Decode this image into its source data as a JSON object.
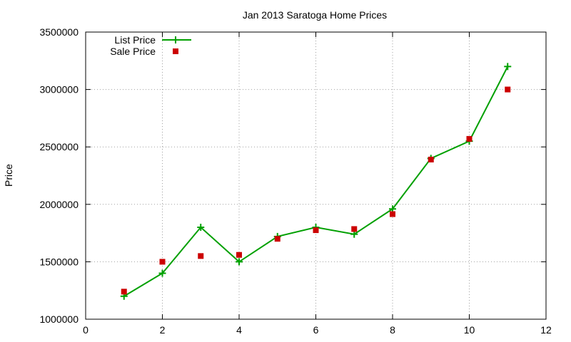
{
  "chart_data": {
    "type": "line",
    "title": "Jan 2013 Saratoga Home Prices",
    "xlabel": "",
    "ylabel": "Price",
    "xlim": [
      0,
      12
    ],
    "ylim": [
      1000000,
      3500000
    ],
    "x_ticks": [
      0,
      2,
      4,
      6,
      8,
      10,
      12
    ],
    "y_ticks": [
      1000000,
      1500000,
      2000000,
      2500000,
      3000000,
      3500000
    ],
    "grid": true,
    "legend_position": "top-left",
    "series": [
      {
        "name": "List Price",
        "style": "line-with-plus-markers",
        "color": "#00a000",
        "x": [
          1,
          2,
          3,
          4,
          5,
          6,
          7,
          8,
          9,
          10,
          11
        ],
        "values": [
          1200000,
          1400000,
          1800000,
          1500000,
          1720000,
          1800000,
          1740000,
          1960000,
          2400000,
          2550000,
          3200000
        ]
      },
      {
        "name": "Sale Price",
        "style": "square-markers",
        "color": "#cc0000",
        "x": [
          1,
          2,
          3,
          4,
          5,
          6,
          7,
          8,
          9,
          10,
          11
        ],
        "values": [
          1240000,
          1500000,
          1550000,
          1560000,
          1700000,
          1775000,
          1785000,
          1915000,
          2390000,
          2570000,
          3000000
        ]
      }
    ]
  }
}
